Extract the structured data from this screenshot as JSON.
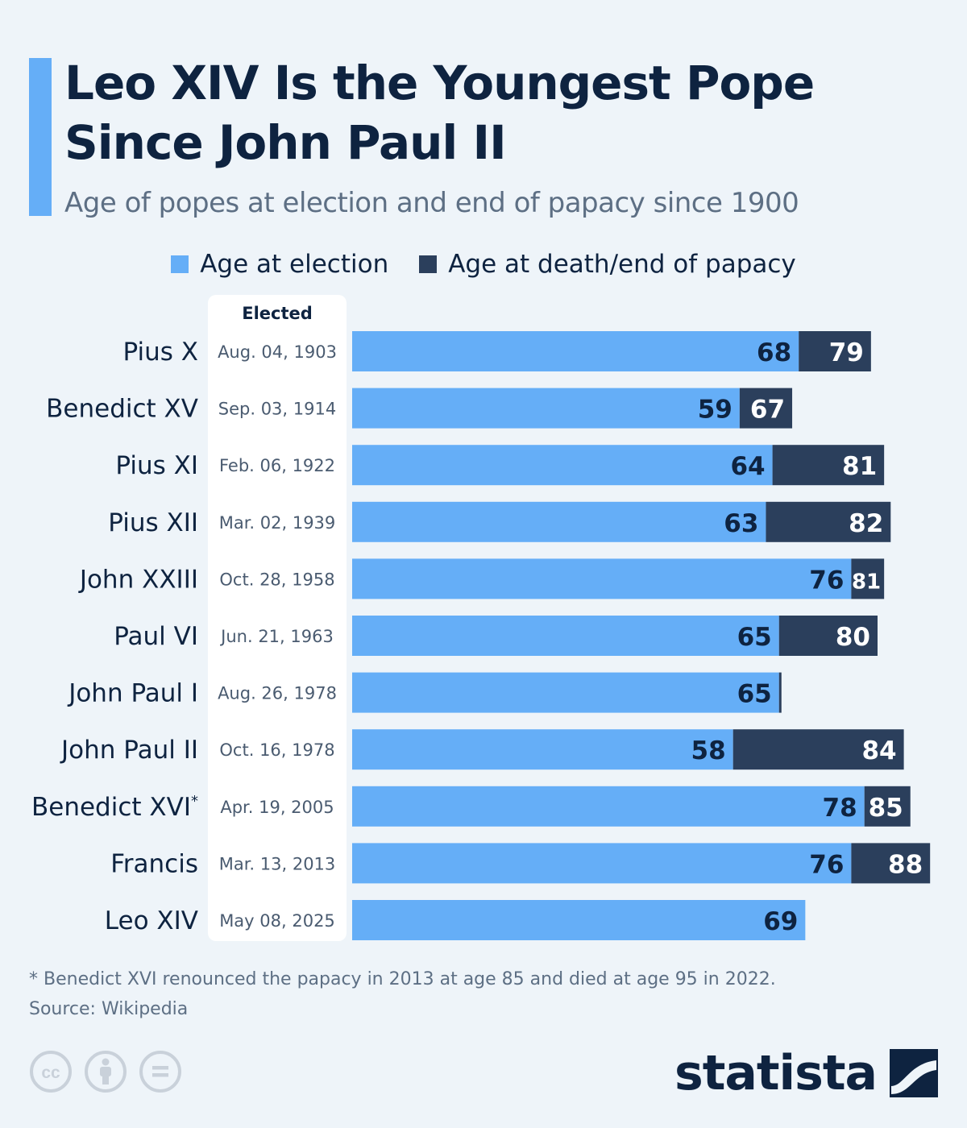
{
  "header": {
    "title": "Leo XIV Is the Youngest Pope Since John Paul II",
    "subtitle": "Age of popes at election and end of papacy since 1900"
  },
  "legend": {
    "election": "Age at election",
    "end": "Age at death/end of papacy"
  },
  "elected_header": "Elected",
  "colors": {
    "election": "#65aef7",
    "end": "#2b3f5c",
    "text": "#0e2340",
    "muted": "#5d6f84",
    "background": "#eef4f9"
  },
  "chart_data": {
    "type": "bar",
    "orientation": "horizontal",
    "categories": [
      "Pius X",
      "Benedict XV",
      "Pius XI",
      "Pius XII",
      "John XXIII",
      "Paul VI",
      "John Paul I",
      "John Paul II",
      "Benedict XVI",
      "Francis",
      "Leo XIV"
    ],
    "category_marks": [
      "",
      "",
      "",
      "",
      "",
      "",
      "",
      "",
      "*",
      "",
      ""
    ],
    "elected": [
      "Aug. 04, 1903",
      "Sep. 03, 1914",
      "Feb. 06, 1922",
      "Mar. 02, 1939",
      "Oct. 28, 1958",
      "Jun. 21, 1963",
      "Aug. 26, 1978",
      "Oct. 16, 1978",
      "Apr. 19, 2005",
      "Mar. 13, 2013",
      "May 08, 2025"
    ],
    "series": [
      {
        "name": "Age at election",
        "values": [
          68,
          59,
          64,
          63,
          76,
          65,
          65,
          58,
          78,
          76,
          69
        ]
      },
      {
        "name": "Age at death/end of papacy",
        "values": [
          79,
          67,
          81,
          82,
          81,
          80,
          65,
          84,
          85,
          88,
          null
        ]
      }
    ],
    "xlim": [
      0,
      88
    ],
    "grid": false,
    "legend_position": "top"
  },
  "footer": {
    "note": "* Benedict XVI renounced the papacy in 2013 at age 85 and died at age 95 in 2022.",
    "source": "Source: Wikipedia",
    "brand": "statista"
  },
  "license_icons": [
    "cc-icon",
    "attribution-icon",
    "no-derivatives-icon"
  ]
}
